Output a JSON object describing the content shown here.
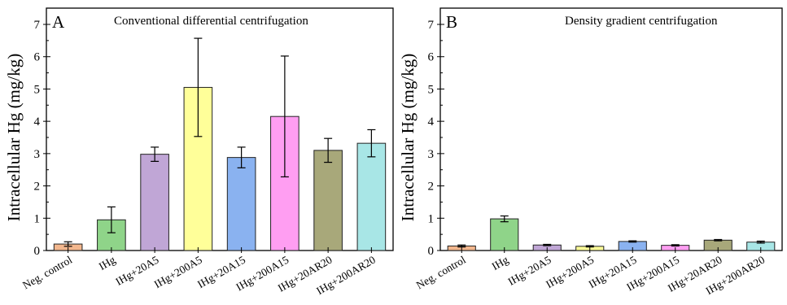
{
  "chart_data": [
    {
      "type": "bar",
      "panel_letter": "A",
      "title": "Conventional differential centrifugation",
      "ylabel": "Intracellular Hg (mg/kg)",
      "xlabel": "",
      "ylim": [
        0,
        7
      ],
      "yticks": [
        "0",
        "1",
        "2",
        "3",
        "4",
        "5",
        "6",
        "7"
      ],
      "grid": false,
      "categories": [
        "Neg. control",
        "IHg",
        "IHg+20A5",
        "IHg+200A5",
        "IHg+20A15",
        "IHg+200A15",
        "IHg+20AR20",
        "IHg+200AR20"
      ],
      "values": [
        0.2,
        0.95,
        2.98,
        5.05,
        2.88,
        4.15,
        3.1,
        3.32
      ],
      "errors": [
        0.07,
        0.4,
        0.22,
        1.52,
        0.32,
        1.87,
        0.37,
        0.42
      ],
      "colors": [
        "#f3b78e",
        "#8fd489",
        "#c0a6d6",
        "#ffff99",
        "#8ab2f0",
        "#ff9ef2",
        "#a8a87a",
        "#a8e6e6"
      ]
    },
    {
      "type": "bar",
      "panel_letter": "B",
      "title": "Density gradient centrifugation",
      "ylabel": "Intracellular Hg (mg/kg)",
      "xlabel": "",
      "ylim": [
        0,
        7
      ],
      "yticks": [
        "0",
        "1",
        "2",
        "3",
        "4",
        "5",
        "6",
        "7"
      ],
      "grid": false,
      "categories": [
        "Neg. control",
        "IHg",
        "IHg+20A5",
        "IHg+200A5",
        "IHg+20A15",
        "IHg+200A15",
        "IHg+20AR20",
        "IHg+200AR20"
      ],
      "values": [
        0.14,
        0.98,
        0.17,
        0.13,
        0.28,
        0.16,
        0.32,
        0.26
      ],
      "errors": [
        0.03,
        0.09,
        0.02,
        0.02,
        0.02,
        0.02,
        0.02,
        0.03
      ],
      "colors": [
        "#f3b78e",
        "#8fd489",
        "#c0a6d6",
        "#ffff99",
        "#8ab2f0",
        "#ff9ef2",
        "#a8a87a",
        "#a8e6e6"
      ]
    }
  ]
}
